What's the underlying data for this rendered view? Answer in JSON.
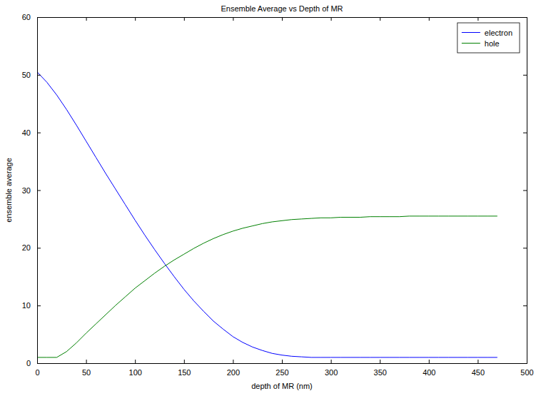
{
  "chart_data": {
    "type": "line",
    "title": "Ensemble Average vs Depth of MR",
    "x_label": "depth of MR (nm)",
    "y_label": "ensemble average",
    "x": [
      0,
      10,
      20,
      30,
      40,
      50,
      60,
      70,
      80,
      90,
      100,
      110,
      120,
      130,
      140,
      150,
      160,
      170,
      180,
      190,
      200,
      210,
      220,
      230,
      240,
      250,
      260,
      270,
      280,
      290,
      300,
      310,
      320,
      330,
      340,
      350,
      360,
      370,
      380,
      390,
      400,
      410,
      420,
      430,
      440,
      450,
      460,
      470
    ],
    "series": [
      {
        "name": "electron",
        "color": "#0000ff",
        "values": [
          50.5,
          48.7,
          46.5,
          44.0,
          41.3,
          38.5,
          35.7,
          32.9,
          30.2,
          27.5,
          24.8,
          22.2,
          19.7,
          17.3,
          15.0,
          12.8,
          10.8,
          9.0,
          7.3,
          5.9,
          4.6,
          3.6,
          2.8,
          2.2,
          1.7,
          1.4,
          1.2,
          1.1,
          1.0,
          1.0,
          1.0,
          1.0,
          1.0,
          1.0,
          1.0,
          1.0,
          1.0,
          1.0,
          1.0,
          1.0,
          1.0,
          1.0,
          1.0,
          1.0,
          1.0,
          1.0,
          1.0,
          1.0
        ]
      },
      {
        "name": "hole",
        "color": "#008000",
        "values": [
          1.0,
          1.0,
          1.0,
          2.0,
          3.5,
          5.2,
          6.8,
          8.4,
          10.0,
          11.5,
          13.0,
          14.3,
          15.6,
          16.8,
          17.9,
          18.9,
          19.9,
          20.8,
          21.6,
          22.3,
          22.9,
          23.4,
          23.8,
          24.2,
          24.5,
          24.7,
          24.9,
          25.0,
          25.1,
          25.2,
          25.2,
          25.3,
          25.3,
          25.3,
          25.4,
          25.4,
          25.4,
          25.4,
          25.5,
          25.5,
          25.5,
          25.5,
          25.5,
          25.5,
          25.5,
          25.5,
          25.5,
          25.5
        ]
      }
    ],
    "xlim": [
      0,
      500
    ],
    "ylim": [
      0,
      60
    ],
    "xticks": [
      0,
      50,
      100,
      150,
      200,
      250,
      300,
      350,
      400,
      450,
      500
    ],
    "yticks": [
      0,
      10,
      20,
      30,
      40,
      50,
      60
    ],
    "grid": false,
    "legend": "upper right"
  }
}
